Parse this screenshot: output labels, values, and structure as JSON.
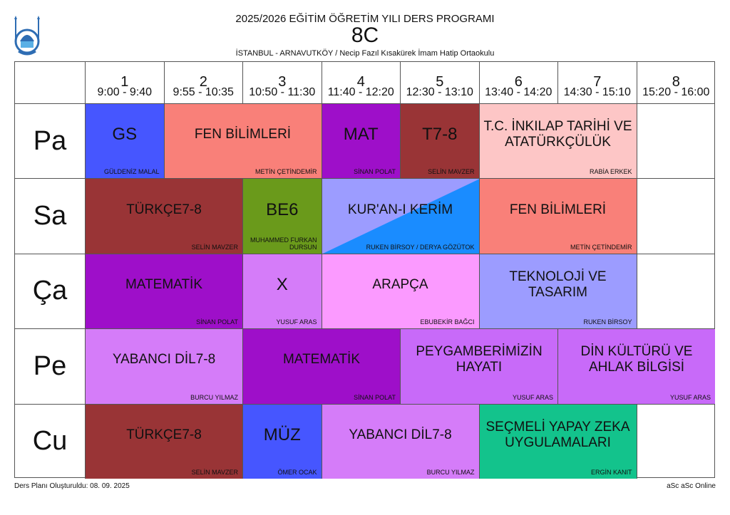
{
  "header": {
    "title": "2025/2026 EĞİTİM ÖĞRETİM YILI DERS PROGRAMI",
    "class_name": "8C",
    "school": "İSTANBUL - ARNAVUTKÖY / Necip Fazıl Kısakürek İmam Hatip Ortaokulu",
    "logo_icon": "school-logo-mosque-icon"
  },
  "periods": [
    {
      "num": "1",
      "time": "9:00 - 9:40"
    },
    {
      "num": "2",
      "time": "9:55 - 10:35"
    },
    {
      "num": "3",
      "time": "10:50 - 11:30"
    },
    {
      "num": "4",
      "time": "11:40 - 12:20"
    },
    {
      "num": "5",
      "time": "12:30 - 13:10"
    },
    {
      "num": "6",
      "time": "13:40 - 14:20"
    },
    {
      "num": "7",
      "time": "14:30 - 15:10"
    },
    {
      "num": "8",
      "time": "15:20 - 16:00"
    }
  ],
  "days": [
    "Pa",
    "Sa",
    "Ça",
    "Pe",
    "Cu"
  ],
  "lessons": [
    {
      "day": 0,
      "start": 1,
      "span": 1,
      "subject": "GS",
      "teacher": "GÜLDENİZ MALAL",
      "color": "#4656ff",
      "size": 24
    },
    {
      "day": 0,
      "start": 2,
      "span": 2,
      "subject": "FEN BİLİMLERİ",
      "teacher": "METİN ÇETİNDEMİR",
      "color": "#f98079",
      "size": 19
    },
    {
      "day": 0,
      "start": 4,
      "span": 1,
      "subject": "MAT",
      "teacher": "SİNAN POLAT",
      "color": "#9e0fc9",
      "size": 24
    },
    {
      "day": 0,
      "start": 5,
      "span": 1,
      "subject": "T7-8",
      "teacher": "SELİN MAVZER",
      "color": "#993436",
      "size": 24
    },
    {
      "day": 0,
      "start": 6,
      "span": 2,
      "subject": "T.C. İNKILAP TARİHİ VE ATATÜRKÇÜLÜK",
      "teacher": "RABİA  ERKEK",
      "color": "#fdc6c6",
      "size": 19
    },
    {
      "day": 1,
      "start": 1,
      "span": 2,
      "subject": "TÜRKÇE7-8",
      "teacher": "SELİN MAVZER",
      "color": "#993436",
      "size": 19
    },
    {
      "day": 1,
      "start": 3,
      "span": 1,
      "subject": "BE6",
      "teacher": "MUHAMMED FURKAN DURSUN",
      "color": "#6a9a1b",
      "size": 24
    },
    {
      "day": 1,
      "start": 4,
      "span": 2,
      "subject": "KUR'AN-I KERİM",
      "teacher": "RUKEN BİRSOY / DERYA GÖZÜTOK",
      "color": "#9c9cff",
      "color2": "#1a8cff",
      "size": 19
    },
    {
      "day": 1,
      "start": 6,
      "span": 2,
      "subject": "FEN BİLİMLERİ",
      "teacher": "METİN ÇETİNDEMİR",
      "color": "#f98079",
      "size": 19
    },
    {
      "day": 2,
      "start": 1,
      "span": 2,
      "subject": "MATEMATİK",
      "teacher": "SİNAN POLAT",
      "color": "#9e0fc9",
      "size": 19
    },
    {
      "day": 2,
      "start": 3,
      "span": 1,
      "subject": "X",
      "teacher": "YUSUF ARAS",
      "color": "#d57cf9",
      "size": 24
    },
    {
      "day": 2,
      "start": 4,
      "span": 2,
      "subject": "ARAPÇA",
      "teacher": "EBUBEKİR BAĞCI",
      "color": "#fb9aff",
      "size": 19
    },
    {
      "day": 2,
      "start": 6,
      "span": 2,
      "subject": "TEKNOLOJİ VE TASARIM",
      "teacher": "RUKEN BİRSOY",
      "color": "#9c9cff",
      "size": 19
    },
    {
      "day": 3,
      "start": 1,
      "span": 2,
      "subject": "YABANCI DİL7-8",
      "teacher": "BURCU YILMAZ",
      "color": "#d57cf9",
      "size": 19
    },
    {
      "day": 3,
      "start": 3,
      "span": 2,
      "subject": "MATEMATİK",
      "teacher": "SİNAN POLAT",
      "color": "#9e0fc9",
      "size": 19
    },
    {
      "day": 3,
      "start": 5,
      "span": 2,
      "subject": "PEYGAMBERİMİZİN HAYATI",
      "teacher": "YUSUF ARAS",
      "color": "#c86af9",
      "size": 19
    },
    {
      "day": 3,
      "start": 7,
      "span": 2,
      "subject": "DİN KÜLTÜRÜ VE AHLAK BİLGİSİ",
      "teacher": "YUSUF ARAS",
      "color": "#c86af9",
      "size": 19
    },
    {
      "day": 4,
      "start": 1,
      "span": 2,
      "subject": "TÜRKÇE7-8",
      "teacher": "SELİN MAVZER",
      "color": "#993436",
      "size": 19
    },
    {
      "day": 4,
      "start": 3,
      "span": 1,
      "subject": "MÜZ",
      "teacher": "ÖMER OCAK",
      "color": "#4656ff",
      "size": 24
    },
    {
      "day": 4,
      "start": 4,
      "span": 2,
      "subject": "YABANCI DİL7-8",
      "teacher": "BURCU YILMAZ",
      "color": "#d57cf9",
      "size": 19
    },
    {
      "day": 4,
      "start": 6,
      "span": 2,
      "subject": "SEÇMELİ YAPAY ZEKA UYGULAMALARI",
      "teacher": "ERGİN KANIT",
      "color": "#13c38c",
      "size": 19
    }
  ],
  "footer": {
    "created": "Ders Planı Oluşturuldu: 08. 09. 2025",
    "credit": "aSc aSc Online"
  }
}
